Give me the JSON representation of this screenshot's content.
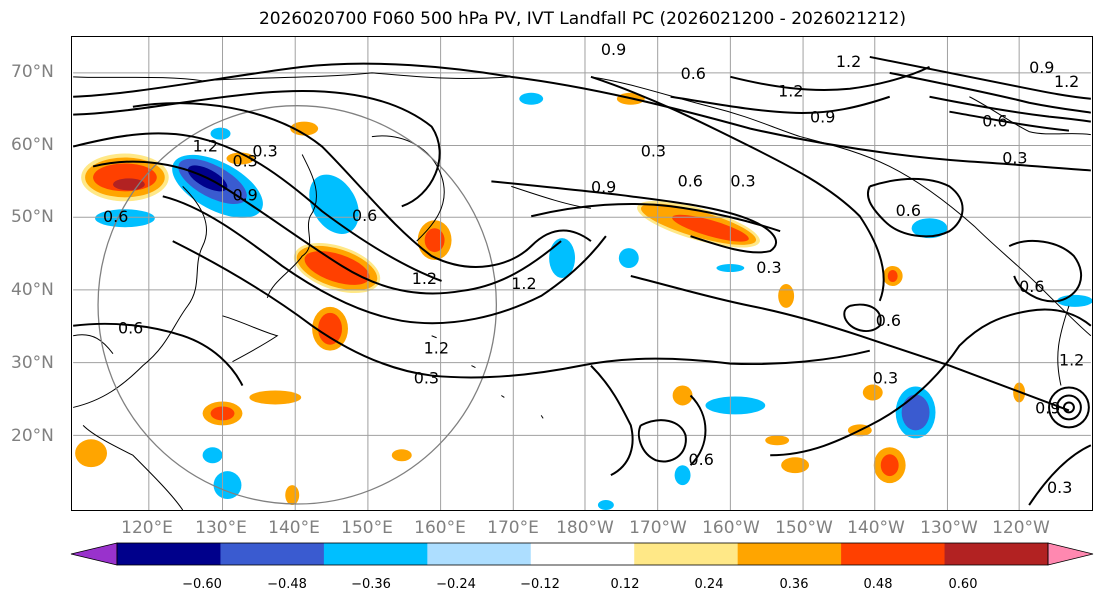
{
  "title": "2026020700 F060 500 hPa PV, IVT Landfall PC (2026021200 - 2026021212)",
  "lat_labels": [
    "70°N",
    "60°N",
    "50°N",
    "40°N",
    "30°N",
    "20°N"
  ],
  "lon_labels": [
    "120°E",
    "130°E",
    "140°E",
    "150°E",
    "160°E",
    "170°E",
    "180°W",
    "170°W",
    "160°W",
    "150°W",
    "140°W",
    "130°W",
    "120°W"
  ],
  "contour_labels": [
    "0.9",
    "0.6",
    "1.2",
    "1.2",
    "0.9",
    "0.6",
    "0.3",
    "0.9",
    "1.2",
    "0.9",
    "0.6",
    "0.3",
    "0.6",
    "0.3",
    "0.6",
    "0.6",
    "0.3",
    "0.3",
    "1.2",
    "1.2",
    "1.2",
    "0.3",
    "0.6",
    "0.3",
    "0.6",
    "0.6",
    "0.9",
    "1.2",
    "0.6",
    "0.3",
    "0.9",
    "1.2",
    "0.3"
  ],
  "colorbar": {
    "colors": [
      "#9932CC",
      "#00008B",
      "#3A5BD0",
      "#00BFFF",
      "#ADDEFF",
      "#FFFFFF",
      "#FFE887",
      "#FFA500",
      "#FF4000",
      "#B22222",
      "#FF88B0"
    ],
    "ticks": [
      "−0.60",
      "−0.48",
      "−0.36",
      "−0.24",
      "−0.12",
      "0.12",
      "0.24",
      "0.36",
      "0.48",
      "0.60"
    ],
    "values": [
      -0.6,
      -0.48,
      -0.36,
      -0.24,
      -0.12,
      0.12,
      0.24,
      0.36,
      0.48,
      0.6
    ],
    "extend": "both"
  },
  "colors": {
    "grid": "#a0a0a0",
    "contour": "#000000",
    "circle": "#808080",
    "axis_label": "#808080"
  }
}
